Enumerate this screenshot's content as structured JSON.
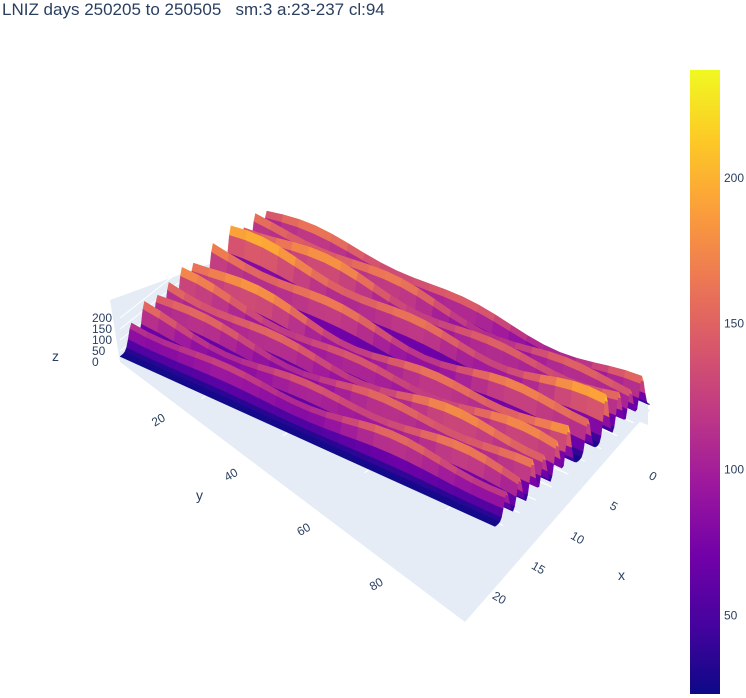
{
  "chart_data": {
    "type": "surface",
    "title": "LNIZ days 250205 to 250505   sm:3 a:23-237 cl:94",
    "colorscale": "plasma",
    "colorscale_colors": [
      "#0d0887",
      "#46039f",
      "#7201a8",
      "#9c179e",
      "#bd3786",
      "#d8576b",
      "#ed7953",
      "#fb9f3a",
      "#fdca26",
      "#f0f921"
    ],
    "x_axis": {
      "label": "x",
      "range": [
        0,
        23
      ],
      "ticks": [
        "0",
        "5",
        "10",
        "15",
        "20"
      ],
      "tick_values": [
        0,
        5,
        10,
        15,
        20
      ]
    },
    "y_axis": {
      "label": "y",
      "range": [
        0,
        95
      ],
      "ticks": [
        "20",
        "40",
        "60",
        "80"
      ],
      "tick_values": [
        20,
        40,
        60,
        80
      ]
    },
    "z_axis": {
      "label": "z",
      "range": [
        0,
        237
      ],
      "ticks": [
        "0",
        "50",
        "100",
        "150",
        "200"
      ],
      "tick_values": [
        0,
        50,
        100,
        150,
        200
      ]
    },
    "colorbar": {
      "range": [
        23,
        237
      ],
      "ticks": [
        "50",
        "100",
        "150",
        "200"
      ],
      "tick_values": [
        50,
        100,
        150,
        200
      ]
    },
    "ridges": [
      {
        "y": 5,
        "peak_z": 200
      },
      {
        "y": 12,
        "peak_z": 210
      },
      {
        "y": 19,
        "peak_z": 220
      },
      {
        "y": 27,
        "peak_z": 237
      },
      {
        "y": 38,
        "peak_z": 225
      },
      {
        "y": 50,
        "peak_z": 230
      },
      {
        "y": 57,
        "peak_z": 210
      },
      {
        "y": 65,
        "peak_z": 220
      },
      {
        "y": 72,
        "peak_z": 205
      },
      {
        "y": 80,
        "peak_z": 200
      },
      {
        "y": 88,
        "peak_z": 185
      }
    ],
    "grid": true
  }
}
